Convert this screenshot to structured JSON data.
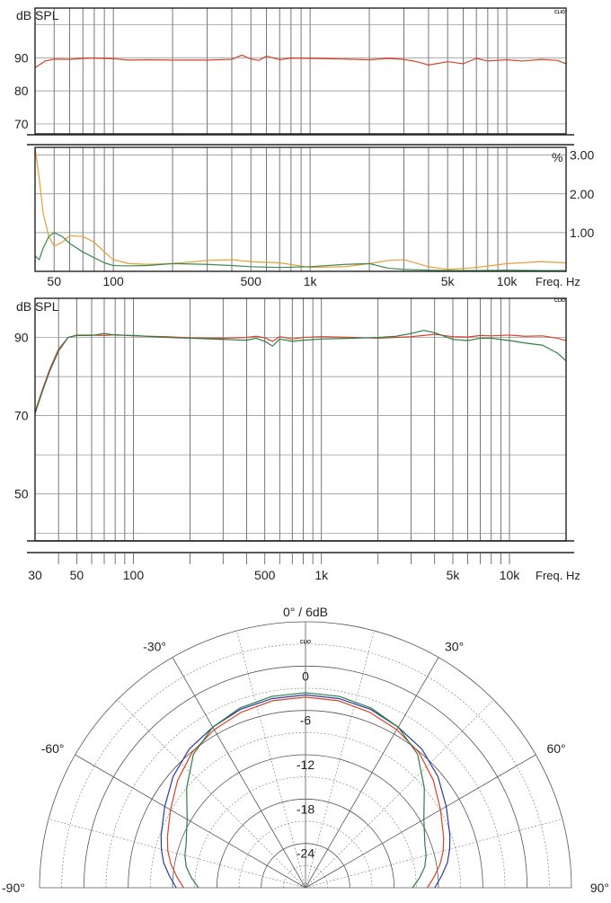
{
  "chart_data": [
    {
      "id": "spl-top",
      "type": "line",
      "ylabel": "dB SPL",
      "logo": "CLIO",
      "xscale": "log",
      "xlim": [
        40,
        20000
      ],
      "ylim": [
        67,
        105
      ],
      "yticks": [
        70,
        80,
        90
      ],
      "hgrid": [
        70,
        80,
        90,
        100
      ],
      "grid": true,
      "series": [
        {
          "color": "#d9412b",
          "x": [
            40,
            45,
            50,
            60,
            70,
            80,
            100,
            120,
            150,
            200,
            300,
            400,
            450,
            500,
            550,
            600,
            700,
            800,
            1000,
            1500,
            2000,
            2500,
            3000,
            3500,
            4000,
            5000,
            6000,
            7000,
            8000,
            10000,
            12000,
            15000,
            18000,
            20000
          ],
          "y": [
            87,
            89,
            89.6,
            89.5,
            89.8,
            89.9,
            89.7,
            89.3,
            89.4,
            89.3,
            89.3,
            89.5,
            90.8,
            89.6,
            89.2,
            90.5,
            89.4,
            89.9,
            89.8,
            89.6,
            89.4,
            89.8,
            89.5,
            88.8,
            87.8,
            88.8,
            88.2,
            89.8,
            89.0,
            89.4,
            89.0,
            89.5,
            89.2,
            88.2
          ]
        }
      ]
    },
    {
      "id": "distortion",
      "type": "line",
      "ylabel": "%",
      "xlabel": "Freq. Hz",
      "xscale": "log",
      "xlim": [
        40,
        20000
      ],
      "ylim": [
        0,
        3.2
      ],
      "yticks": [
        1.0,
        2.0,
        3.0
      ],
      "ytick_labels": [
        "1.00",
        "2.00",
        "3.00"
      ],
      "xticks": [
        50,
        100,
        500,
        1000,
        5000,
        10000
      ],
      "xtick_labels": [
        "50",
        "100",
        "500",
        "1k",
        "5k",
        "10k"
      ],
      "grid": true,
      "series": [
        {
          "color": "#eb9b33",
          "x": [
            40,
            42,
            44,
            47,
            50,
            55,
            60,
            70,
            80,
            90,
            100,
            120,
            150,
            200,
            300,
            400,
            500,
            700,
            1000,
            1500,
            2000,
            2500,
            3000,
            4000,
            5000,
            7000,
            10000,
            15000,
            20000
          ],
          "y": [
            3.2,
            2.4,
            1.5,
            0.9,
            0.65,
            0.75,
            0.92,
            0.9,
            0.75,
            0.5,
            0.3,
            0.2,
            0.18,
            0.2,
            0.28,
            0.3,
            0.25,
            0.22,
            0.1,
            0.12,
            0.2,
            0.28,
            0.3,
            0.12,
            0.05,
            0.1,
            0.2,
            0.25,
            0.22
          ]
        },
        {
          "color": "#3b8a4f",
          "x": [
            40,
            42,
            44,
            47,
            50,
            55,
            60,
            70,
            80,
            90,
            100,
            120,
            150,
            200,
            300,
            400,
            500,
            700,
            1000,
            1500,
            2000,
            2500,
            3000,
            4000,
            5000,
            7000,
            10000,
            15000,
            20000
          ],
          "y": [
            0.4,
            0.3,
            0.6,
            0.9,
            1.0,
            0.9,
            0.72,
            0.5,
            0.35,
            0.22,
            0.15,
            0.14,
            0.15,
            0.2,
            0.18,
            0.15,
            0.12,
            0.1,
            0.12,
            0.18,
            0.2,
            0.08,
            0.05,
            0.03,
            0.02,
            0.02,
            0.03,
            0.02,
            0.02
          ]
        }
      ]
    },
    {
      "id": "spl-bottom",
      "type": "line",
      "ylabel": "dB SPL",
      "xlabel": "Freq. Hz",
      "logo": "CLIO",
      "xscale": "log",
      "xlim": [
        30,
        20000
      ],
      "ylim": [
        38,
        100
      ],
      "yticks": [
        50,
        70,
        90
      ],
      "hgrid": [
        40,
        50,
        60,
        70,
        80,
        90
      ],
      "xticks": [
        30,
        50,
        100,
        500,
        1000,
        5000,
        10000
      ],
      "xtick_labels": [
        "30",
        "50",
        "100",
        "500",
        "1k",
        "5k",
        "10k"
      ],
      "grid": true,
      "series": [
        {
          "color": "#d9412b",
          "x": [
            30,
            33,
            36,
            40,
            45,
            50,
            60,
            70,
            80,
            100,
            150,
            200,
            300,
            400,
            450,
            500,
            550,
            600,
            700,
            800,
            1000,
            1500,
            2000,
            2500,
            3000,
            3500,
            4000,
            5000,
            6000,
            7000,
            8000,
            10000,
            12000,
            15000,
            18000,
            20000
          ],
          "y": [
            71,
            77,
            82,
            87,
            90,
            90.6,
            90.6,
            90.5,
            90.7,
            90.4,
            90.2,
            89.9,
            89.8,
            90.0,
            90.3,
            89.9,
            89.0,
            90.2,
            89.6,
            90.0,
            90.2,
            90.0,
            89.8,
            90.0,
            90.2,
            90.5,
            90.8,
            90.2,
            90.1,
            90.5,
            90.4,
            90.6,
            90.3,
            90.4,
            89.8,
            89.2
          ]
        },
        {
          "color": "#2e7d45",
          "x": [
            30,
            33,
            36,
            40,
            45,
            50,
            60,
            70,
            80,
            100,
            150,
            200,
            300,
            400,
            450,
            500,
            550,
            600,
            700,
            800,
            1000,
            1500,
            2000,
            2500,
            3000,
            3500,
            4000,
            5000,
            6000,
            7000,
            8000,
            10000,
            12000,
            15000,
            18000,
            20000
          ],
          "y": [
            70.5,
            76.5,
            81.5,
            86.5,
            90,
            90.5,
            90.5,
            91.0,
            90.6,
            90.5,
            90.0,
            89.8,
            89.5,
            89.3,
            89.8,
            89.0,
            87.8,
            89.6,
            89.0,
            89.3,
            89.6,
            89.8,
            90.0,
            90.3,
            91.0,
            91.8,
            91.2,
            89.5,
            89.2,
            89.8,
            89.8,
            89.2,
            88.6,
            88.0,
            86.0,
            84.0
          ]
        }
      ]
    },
    {
      "id": "polar",
      "type": "polar",
      "title": "0° / 6dB",
      "logo": "CLIO",
      "angle_labels": [
        {
          "angle": -30,
          "text": "-30°"
        },
        {
          "angle": 30,
          "text": "30°"
        },
        {
          "angle": -60,
          "text": "-60°"
        },
        {
          "angle": 60,
          "text": "60°"
        },
        {
          "angle": -90,
          "text": "-90°"
        },
        {
          "angle": 90,
          "text": "90°"
        }
      ],
      "radial_ticks": [
        0,
        -6,
        -12,
        -18,
        -24
      ],
      "radial_labels": [
        "0",
        "-6",
        "-12",
        "-18",
        "-24"
      ],
      "rmin_db": -30,
      "rmax_db": 6,
      "angles": [
        -90,
        -85,
        -80,
        -75,
        -70,
        -60,
        -50,
        -40,
        -30,
        -20,
        -10,
        0,
        10,
        20,
        30,
        40,
        50,
        60,
        70,
        75,
        80,
        85,
        90
      ],
      "series": [
        {
          "color": "#2b3aa0",
          "db": [
            -12.5,
            -11.5,
            -10.5,
            -9.8,
            -9.2,
            -8.0,
            -6.6,
            -5.5,
            -4.9,
            -4.3,
            -4.0,
            -3.9,
            -4.0,
            -4.3,
            -4.9,
            -5.5,
            -6.6,
            -8.0,
            -9.2,
            -9.8,
            -10.5,
            -11.5,
            -12.5
          ]
        },
        {
          "color": "#d9412b",
          "db": [
            -13.5,
            -12.5,
            -11.5,
            -10.7,
            -10.1,
            -8.9,
            -7.4,
            -6.1,
            -5.3,
            -4.7,
            -4.3,
            -4.2,
            -4.3,
            -4.7,
            -5.3,
            -6.1,
            -7.4,
            -8.9,
            -10.1,
            -10.7,
            -11.5,
            -12.5,
            -13.5
          ]
        },
        {
          "color": "#2e7d45",
          "db": [
            -15.5,
            -14.5,
            -13.6,
            -13.1,
            -12.8,
            -11.5,
            -9.0,
            -6.4,
            -4.9,
            -4.1,
            -3.7,
            -3.6,
            -3.7,
            -4.1,
            -4.9,
            -6.4,
            -9.0,
            -11.5,
            -12.8,
            -13.1,
            -13.6,
            -14.5,
            -15.5
          ]
        }
      ]
    }
  ]
}
